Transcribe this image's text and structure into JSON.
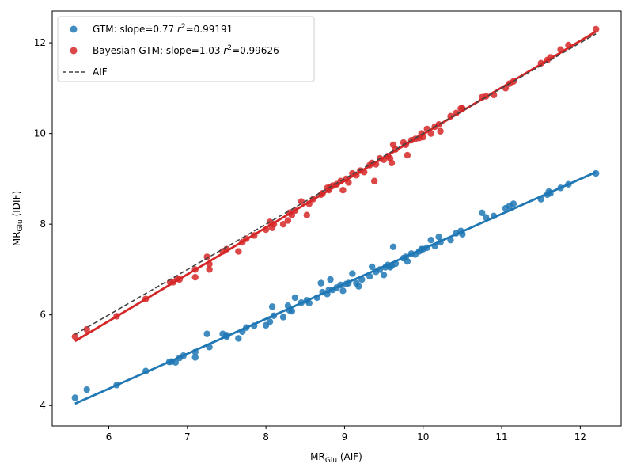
{
  "chart_data": {
    "type": "scatter",
    "xlabel": "MR",
    "xlabel_sub": "Glu",
    "xlabel_suffix": " (AIF)",
    "ylabel": "MR",
    "ylabel_sub": "Glu",
    "ylabel_suffix": " (IDIF)",
    "xlim": [
      5.28,
      12.52
    ],
    "ylim": [
      3.55,
      12.7
    ],
    "xticks": [
      6,
      7,
      8,
      9,
      10,
      11,
      12
    ],
    "yticks": [
      4,
      6,
      8,
      10,
      12
    ],
    "grid": false,
    "legend_position": "top-left",
    "colors": {
      "gtm": "#1f77b4",
      "bayes": "#d62728",
      "aif": "#444444"
    },
    "legend": [
      {
        "key": "gtm",
        "prefix": "GTM: slope=0.77 ",
        "r2_symbol": "r",
        "r2_sup": "2",
        "suffix": "=0.99191",
        "kind": "dot"
      },
      {
        "key": "bayes",
        "prefix": "Bayesian GTM: slope=1.03 ",
        "r2_symbol": "r",
        "r2_sup": "2",
        "suffix": "=0.99626",
        "kind": "dot"
      },
      {
        "key": "aif",
        "prefix": "AIF",
        "r2_symbol": "",
        "r2_sup": "",
        "suffix": "",
        "kind": "dash"
      }
    ],
    "aif_line": {
      "x": [
        5.57,
        12.2
      ],
      "y": [
        5.57,
        12.2
      ]
    },
    "series": [
      {
        "key": "gtm",
        "name": "GTM",
        "fit": {
          "x": [
            5.57,
            12.2
          ],
          "y": [
            4.04,
            9.15
          ]
        },
        "points": [
          [
            5.57,
            4.17
          ],
          [
            5.72,
            4.35
          ],
          [
            6.1,
            4.45
          ],
          [
            6.47,
            4.76
          ],
          [
            6.77,
            4.96
          ],
          [
            6.8,
            4.97
          ],
          [
            6.85,
            4.95
          ],
          [
            6.9,
            5.05
          ],
          [
            6.95,
            5.1
          ],
          [
            7.1,
            5.18
          ],
          [
            7.1,
            5.06
          ],
          [
            7.25,
            5.58
          ],
          [
            7.28,
            5.29
          ],
          [
            7.45,
            5.58
          ],
          [
            7.5,
            5.52
          ],
          [
            7.5,
            5.55
          ],
          [
            7.65,
            5.48
          ],
          [
            7.7,
            5.63
          ],
          [
            7.75,
            5.72
          ],
          [
            7.85,
            5.76
          ],
          [
            8.0,
            5.77
          ],
          [
            8.05,
            5.85
          ],
          [
            8.08,
            6.18
          ],
          [
            8.1,
            5.98
          ],
          [
            8.22,
            5.95
          ],
          [
            8.28,
            6.2
          ],
          [
            8.3,
            6.1
          ],
          [
            8.33,
            6.08
          ],
          [
            8.37,
            6.38
          ],
          [
            8.45,
            6.27
          ],
          [
            8.52,
            6.32
          ],
          [
            8.55,
            6.26
          ],
          [
            8.65,
            6.38
          ],
          [
            8.7,
            6.7
          ],
          [
            8.72,
            6.5
          ],
          [
            8.78,
            6.46
          ],
          [
            8.8,
            6.55
          ],
          [
            8.82,
            6.78
          ],
          [
            8.85,
            6.55
          ],
          [
            8.9,
            6.6
          ],
          [
            8.95,
            6.66
          ],
          [
            8.98,
            6.53
          ],
          [
            9.02,
            6.68
          ],
          [
            9.05,
            6.7
          ],
          [
            9.1,
            6.91
          ],
          [
            9.15,
            6.7
          ],
          [
            9.18,
            6.63
          ],
          [
            9.22,
            6.78
          ],
          [
            9.32,
            6.85
          ],
          [
            9.35,
            7.06
          ],
          [
            9.4,
            6.95
          ],
          [
            9.45,
            7.0
          ],
          [
            9.5,
            6.88
          ],
          [
            9.52,
            7.05
          ],
          [
            9.55,
            7.1
          ],
          [
            9.58,
            7.05
          ],
          [
            9.6,
            7.08
          ],
          [
            9.62,
            7.5
          ],
          [
            9.65,
            7.13
          ],
          [
            9.75,
            7.25
          ],
          [
            9.78,
            7.28
          ],
          [
            9.8,
            7.18
          ],
          [
            9.85,
            7.35
          ],
          [
            9.9,
            7.33
          ],
          [
            9.95,
            7.4
          ],
          [
            9.98,
            7.45
          ],
          [
            10.0,
            7.45
          ],
          [
            10.05,
            7.48
          ],
          [
            10.1,
            7.65
          ],
          [
            10.15,
            7.52
          ],
          [
            10.2,
            7.72
          ],
          [
            10.22,
            7.6
          ],
          [
            10.35,
            7.65
          ],
          [
            10.42,
            7.8
          ],
          [
            10.48,
            7.85
          ],
          [
            10.5,
            7.78
          ],
          [
            10.75,
            8.25
          ],
          [
            10.8,
            8.15
          ],
          [
            10.9,
            8.18
          ],
          [
            11.05,
            8.35
          ],
          [
            11.1,
            8.4
          ],
          [
            11.15,
            8.45
          ],
          [
            11.5,
            8.55
          ],
          [
            11.58,
            8.65
          ],
          [
            11.6,
            8.72
          ],
          [
            11.62,
            8.68
          ],
          [
            11.75,
            8.8
          ],
          [
            11.85,
            8.88
          ],
          [
            12.2,
            9.12
          ]
        ]
      },
      {
        "key": "bayes",
        "name": "Bayesian GTM",
        "fit": {
          "x": [
            5.57,
            12.2
          ],
          "y": [
            5.42,
            12.25
          ]
        },
        "points": [
          [
            5.57,
            5.52
          ],
          [
            5.72,
            5.68
          ],
          [
            6.1,
            5.97
          ],
          [
            6.47,
            6.35
          ],
          [
            6.78,
            6.72
          ],
          [
            6.82,
            6.72
          ],
          [
            6.87,
            6.8
          ],
          [
            6.9,
            6.78
          ],
          [
            7.1,
            7.0
          ],
          [
            7.1,
            6.83
          ],
          [
            7.25,
            7.28
          ],
          [
            7.28,
            7.12
          ],
          [
            7.28,
            7.0
          ],
          [
            7.45,
            7.4
          ],
          [
            7.5,
            7.45
          ],
          [
            7.65,
            7.4
          ],
          [
            7.7,
            7.6
          ],
          [
            7.75,
            7.68
          ],
          [
            7.85,
            7.75
          ],
          [
            8.0,
            7.88
          ],
          [
            8.05,
            8.05
          ],
          [
            8.08,
            7.92
          ],
          [
            8.1,
            8.0
          ],
          [
            8.22,
            8.0
          ],
          [
            8.28,
            8.08
          ],
          [
            8.3,
            8.25
          ],
          [
            8.33,
            8.2
          ],
          [
            8.37,
            8.3
          ],
          [
            8.45,
            8.5
          ],
          [
            8.52,
            8.2
          ],
          [
            8.55,
            8.45
          ],
          [
            8.6,
            8.55
          ],
          [
            8.7,
            8.65
          ],
          [
            8.72,
            8.68
          ],
          [
            8.78,
            8.8
          ],
          [
            8.8,
            8.75
          ],
          [
            8.82,
            8.82
          ],
          [
            8.85,
            8.85
          ],
          [
            8.9,
            8.88
          ],
          [
            8.95,
            8.95
          ],
          [
            8.98,
            8.75
          ],
          [
            9.02,
            9.0
          ],
          [
            9.05,
            8.92
          ],
          [
            9.1,
            9.12
          ],
          [
            9.15,
            9.08
          ],
          [
            9.2,
            9.18
          ],
          [
            9.25,
            9.15
          ],
          [
            9.32,
            9.3
          ],
          [
            9.35,
            9.35
          ],
          [
            9.38,
            8.95
          ],
          [
            9.4,
            9.32
          ],
          [
            9.45,
            9.45
          ],
          [
            9.5,
            9.42
          ],
          [
            9.55,
            9.5
          ],
          [
            9.58,
            9.45
          ],
          [
            9.6,
            9.35
          ],
          [
            9.62,
            9.75
          ],
          [
            9.65,
            9.65
          ],
          [
            9.75,
            9.8
          ],
          [
            9.78,
            9.75
          ],
          [
            9.8,
            9.52
          ],
          [
            9.85,
            9.85
          ],
          [
            9.9,
            9.88
          ],
          [
            9.95,
            9.9
          ],
          [
            9.98,
            10.0
          ],
          [
            10.0,
            9.92
          ],
          [
            10.05,
            10.1
          ],
          [
            10.1,
            10.0
          ],
          [
            10.15,
            10.15
          ],
          [
            10.2,
            10.2
          ],
          [
            10.22,
            10.05
          ],
          [
            10.35,
            10.38
          ],
          [
            10.42,
            10.45
          ],
          [
            10.48,
            10.55
          ],
          [
            10.5,
            10.55
          ],
          [
            10.75,
            10.8
          ],
          [
            10.8,
            10.82
          ],
          [
            10.9,
            10.85
          ],
          [
            11.05,
            11.0
          ],
          [
            11.1,
            11.1
          ],
          [
            11.15,
            11.15
          ],
          [
            11.5,
            11.55
          ],
          [
            11.58,
            11.62
          ],
          [
            11.62,
            11.68
          ],
          [
            11.75,
            11.85
          ],
          [
            11.85,
            11.95
          ],
          [
            12.2,
            12.3
          ]
        ]
      }
    ]
  }
}
